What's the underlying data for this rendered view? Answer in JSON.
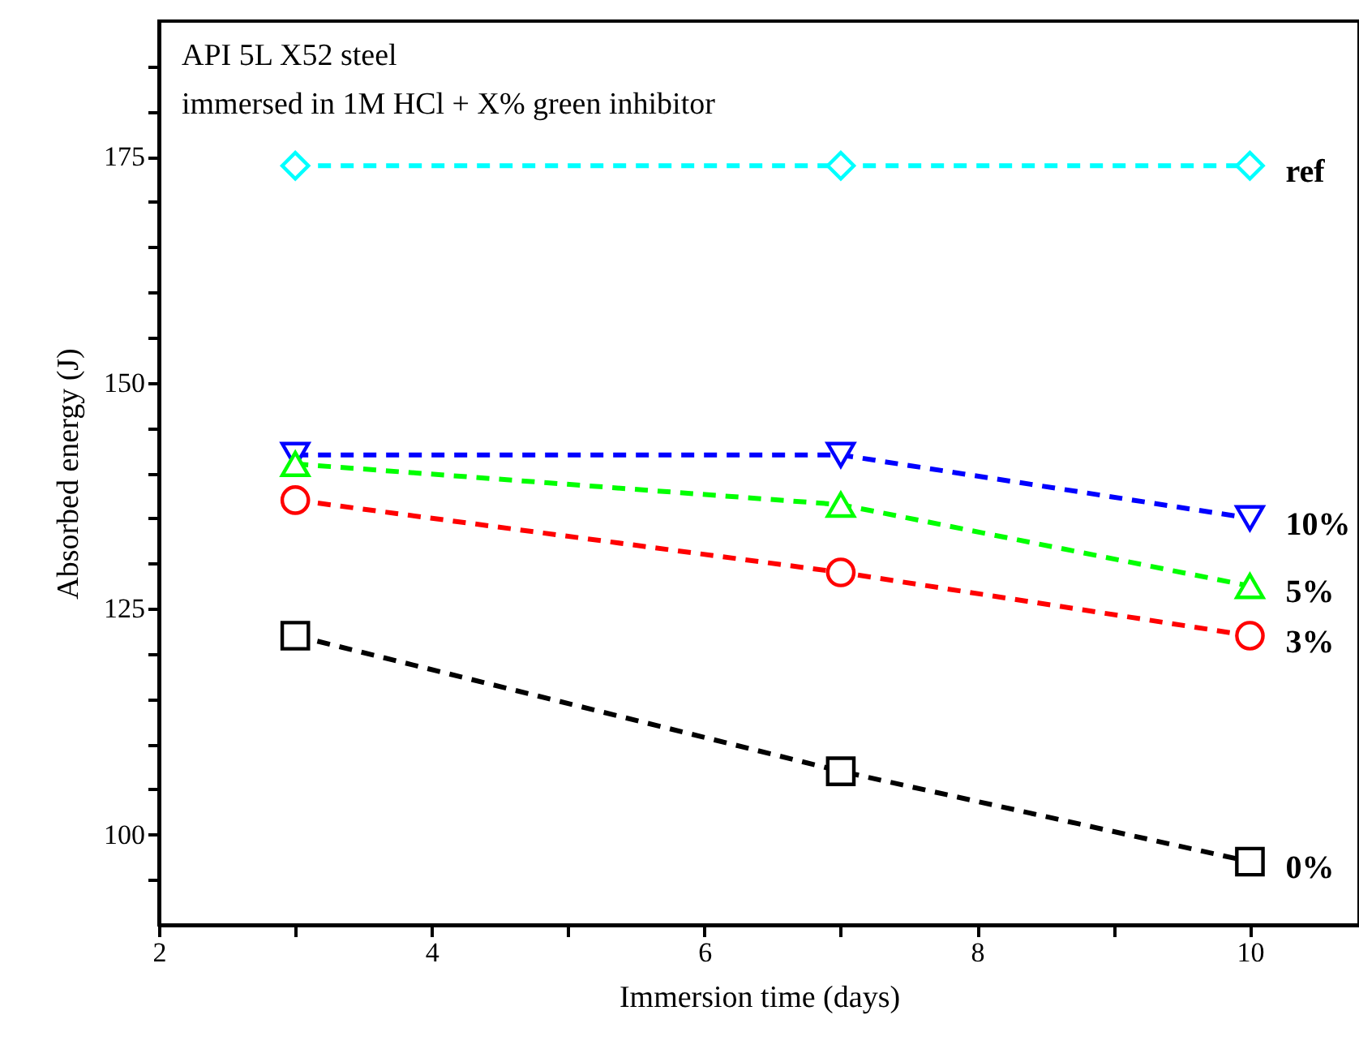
{
  "chart_data": {
    "type": "line",
    "xlabel": "Immersion time (days)",
    "ylabel": "Absorbed energy (J)",
    "annotations": [
      "API 5L X52 steel",
      "immersed in 1M HCl + X% green inhibitor"
    ],
    "x": [
      3,
      7,
      10
    ],
    "series": [
      {
        "name": "ref",
        "color": "#00ffff",
        "marker": "diamond",
        "values": [
          174,
          174,
          174
        ]
      },
      {
        "name": "10%",
        "color": "#0000ff",
        "marker": "triangle-down",
        "values": [
          142,
          142,
          135
        ]
      },
      {
        "name": "5%",
        "color": "#00ff00",
        "marker": "triangle",
        "values": [
          141,
          136.5,
          127.5
        ]
      },
      {
        "name": "3%",
        "color": "#ff0000",
        "marker": "circle",
        "values": [
          137,
          129,
          122
        ]
      },
      {
        "name": "0%",
        "color": "#000000",
        "marker": "square",
        "values": [
          122,
          107,
          97
        ]
      }
    ],
    "line_style": "dashed",
    "grid": false,
    "legend": false,
    "xlim": [
      2,
      10.8
    ],
    "xticks": [
      2,
      {
        "value": 3,
        "label": null
      },
      4,
      {
        "value": 5,
        "label": null
      },
      6,
      {
        "value": 7,
        "label": null
      },
      8,
      {
        "value": 9,
        "label": null
      },
      10
    ],
    "ylim": [
      90,
      190
    ],
    "yticks": [
      {
        "value": 95,
        "label": null
      },
      100,
      {
        "value": 105,
        "label": null
      },
      {
        "value": 110,
        "label": null
      },
      {
        "value": 115,
        "label": null
      },
      {
        "value": 120,
        "label": null
      },
      125,
      {
        "value": 130,
        "label": null
      },
      {
        "value": 135,
        "label": null
      },
      {
        "value": 140,
        "label": null
      },
      {
        "value": 145,
        "label": null
      },
      150,
      {
        "value": 155,
        "label": null
      },
      {
        "value": 160,
        "label": null
      },
      {
        "value": 165,
        "label": null
      },
      {
        "value": 170,
        "label": null
      },
      175,
      {
        "value": 180,
        "label": null
      },
      {
        "value": 185,
        "label": null
      }
    ]
  }
}
